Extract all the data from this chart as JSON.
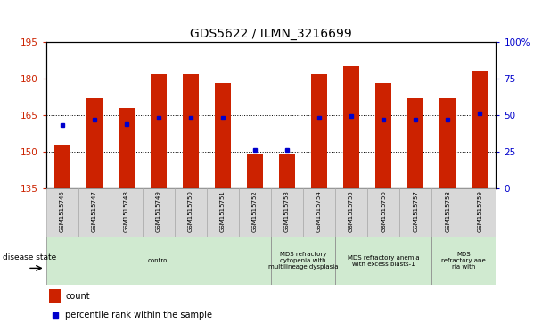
{
  "title": "GDS5622 / ILMN_3216699",
  "samples": [
    "GSM1515746",
    "GSM1515747",
    "GSM1515748",
    "GSM1515749",
    "GSM1515750",
    "GSM1515751",
    "GSM1515752",
    "GSM1515753",
    "GSM1515754",
    "GSM1515755",
    "GSM1515756",
    "GSM1515757",
    "GSM1515758",
    "GSM1515759"
  ],
  "counts": [
    153,
    172,
    168,
    182,
    182,
    178,
    149,
    149,
    182,
    185,
    178,
    172,
    172,
    183
  ],
  "percentiles": [
    43,
    47,
    44,
    48,
    48,
    48,
    26,
    26,
    48,
    49,
    47,
    47,
    47,
    51
  ],
  "ymin": 135,
  "ymax": 195,
  "yticks": [
    135,
    150,
    165,
    180,
    195
  ],
  "right_yticks": [
    0,
    25,
    50,
    75,
    100
  ],
  "bar_color": "#cc2200",
  "marker_color": "#0000cc",
  "title_color": "#000000",
  "left_axis_color": "#cc2200",
  "right_axis_color": "#0000cc",
  "disease_groups": [
    {
      "label": "control",
      "start": 0,
      "end": 7,
      "color": "#d0ead0"
    },
    {
      "label": "MDS refractory\ncytopenia with\nmultilineage dysplasia",
      "start": 7,
      "end": 9,
      "color": "#d0ead0"
    },
    {
      "label": "MDS refractory anemia\nwith excess blasts-1",
      "start": 9,
      "end": 12,
      "color": "#d0ead0"
    },
    {
      "label": "MDS\nrefractory ane\nria with",
      "start": 12,
      "end": 14,
      "color": "#d0ead0"
    }
  ],
  "disease_state_label": "disease state",
  "legend_count": "count",
  "legend_percentile": "percentile rank within the sample",
  "bar_width": 0.5
}
